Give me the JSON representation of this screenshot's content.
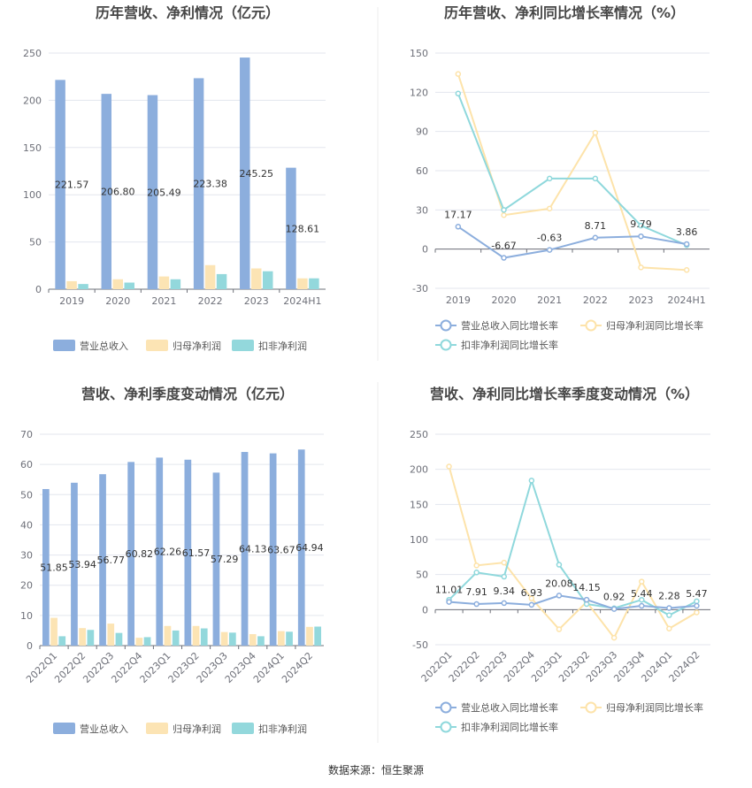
{
  "source": "数据来源：恒生聚源",
  "colors": {
    "revenue": "#8caedd",
    "net_profit": "#fce4b4",
    "deducted_profit": "#93d8dc",
    "line_revenue": "#8caedd",
    "line_net": "#fde3aa",
    "line_deducted": "#8fd8dc",
    "divider": "#e8e8e8"
  },
  "chart_data": [
    {
      "id": "annual-bar",
      "type": "bar",
      "title": "历年营收、净利情况（亿元）",
      "categories": [
        "2019",
        "2020",
        "2021",
        "2022",
        "2023",
        "2024H1"
      ],
      "ylim": [
        0,
        250
      ],
      "yticks": [
        "0",
        "50",
        "100",
        "150",
        "200",
        "250"
      ],
      "series": [
        {
          "name": "营业总收入",
          "values": [
            221.57,
            206.8,
            205.49,
            223.38,
            245.25,
            128.61
          ]
        },
        {
          "name": "归母净利润",
          "values": [
            8.5,
            10.5,
            13.5,
            25.5,
            22.0,
            11.5
          ]
        },
        {
          "name": "扣非净利润",
          "values": [
            5.5,
            7.0,
            10.5,
            16.0,
            19.0,
            11.5
          ]
        }
      ],
      "data_labels": [
        "221.57",
        "206.80",
        "205.49",
        "223.38",
        "245.25",
        "128.61"
      ]
    },
    {
      "id": "annual-line",
      "type": "line",
      "title": "历年营收、净利同比增长率情况（%）",
      "categories": [
        "2019",
        "2020",
        "2021",
        "2022",
        "2023",
        "2024H1"
      ],
      "ylim": [
        -30,
        150
      ],
      "yticks": [
        "-30",
        "0",
        "30",
        "60",
        "90",
        "120",
        "150"
      ],
      "series": [
        {
          "name": "营业总收入同比增长率",
          "values": [
            17.17,
            -6.67,
            -0.63,
            8.71,
            9.79,
            3.86
          ]
        },
        {
          "name": "归母净利润同比增长率",
          "values": [
            134,
            26,
            31,
            89,
            -14,
            -16
          ]
        },
        {
          "name": "扣非净利润同比增长率",
          "values": [
            119,
            30,
            54,
            54,
            18,
            3
          ]
        }
      ],
      "data_labels": [
        "17.17",
        "-6.67",
        "-0.63",
        "8.71",
        "9.79",
        "3.86"
      ]
    },
    {
      "id": "quarter-bar",
      "type": "bar",
      "title": "营收、净利季度变动情况（亿元）",
      "categories": [
        "2022Q1",
        "2022Q2",
        "2022Q3",
        "2022Q4",
        "2023Q1",
        "2023Q2",
        "2023Q3",
        "2023Q4",
        "2024Q1",
        "2024Q2"
      ],
      "ylim": [
        0,
        70
      ],
      "yticks": [
        "0",
        "10",
        "20",
        "30",
        "40",
        "50",
        "60",
        "70"
      ],
      "series": [
        {
          "name": "营业总收入",
          "values": [
            51.85,
            53.94,
            56.77,
            60.82,
            62.26,
            61.57,
            57.29,
            64.13,
            63.67,
            64.94
          ]
        },
        {
          "name": "归母净利润",
          "values": [
            9.2,
            5.8,
            7.3,
            2.6,
            6.5,
            6.5,
            4.5,
            3.8,
            4.8,
            6.2
          ]
        },
        {
          "name": "扣非净利润",
          "values": [
            3.1,
            5.2,
            4.2,
            2.8,
            5.0,
            5.7,
            4.3,
            3.1,
            4.6,
            6.3
          ]
        }
      ],
      "data_labels": [
        "51.85",
        "53.94",
        "56.77",
        "60.82",
        "62.26",
        "61.57",
        "57.29",
        "64.13",
        "63.67",
        "64.94"
      ]
    },
    {
      "id": "quarter-line",
      "type": "line",
      "title": "营收、净利同比增长率季度变动情况（%）",
      "categories": [
        "2022Q1",
        "2022Q2",
        "2022Q3",
        "2022Q4",
        "2023Q1",
        "2023Q2",
        "2023Q3",
        "2023Q4",
        "2024Q1",
        "2024Q2"
      ],
      "ylim": [
        -50,
        250
      ],
      "yticks": [
        "-50",
        "0",
        "50",
        "100",
        "150",
        "200",
        "250"
      ],
      "series": [
        {
          "name": "营业总收入同比增长率",
          "values": [
            11.01,
            7.91,
            9.34,
            6.93,
            20.08,
            14.15,
            0.92,
            5.44,
            2.28,
            5.47
          ]
        },
        {
          "name": "归母净利润同比增长率",
          "values": [
            204,
            63,
            67,
            16,
            -28,
            11,
            -40,
            40,
            -27,
            -4
          ]
        },
        {
          "name": "扣非净利润同比增长率",
          "values": [
            14,
            53,
            47,
            184,
            64,
            8,
            2,
            14,
            -8,
            12
          ]
        }
      ],
      "data_labels": [
        "11.01",
        "7.91",
        "9.34",
        "6.93",
        "20.08",
        "14.15",
        "0.92",
        "5.44",
        "2.28",
        "5.47"
      ]
    }
  ]
}
